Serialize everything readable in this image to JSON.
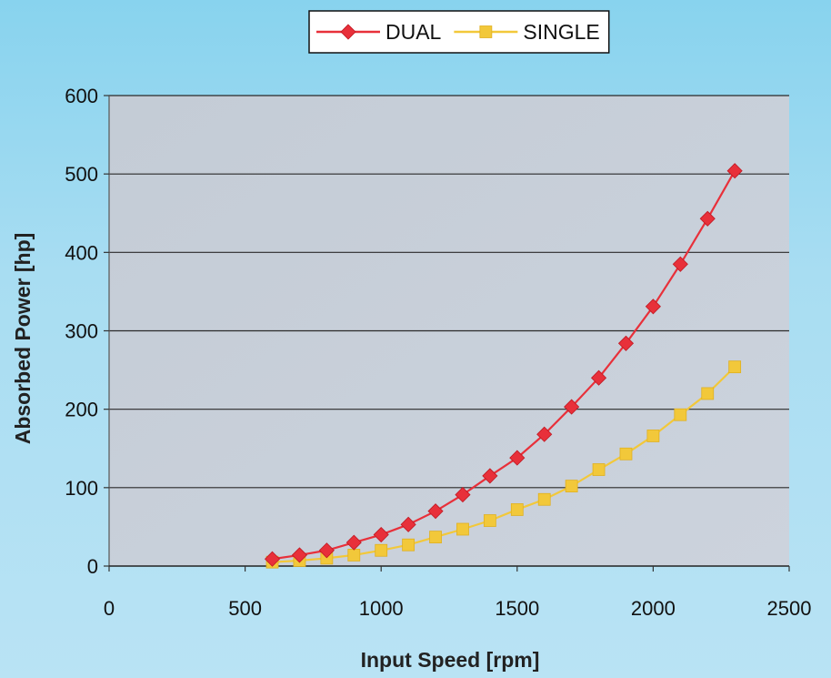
{
  "chart_data": {
    "type": "line",
    "title": "",
    "xlabel": "Input Speed [rpm]",
    "ylabel": "Absorbed Power [hp]",
    "xlim": [
      0,
      2500
    ],
    "ylim": [
      0,
      600
    ],
    "xticks": [
      "0",
      "500",
      "1000",
      "1500",
      "2000",
      "2500"
    ],
    "yticks": [
      "0",
      "100",
      "200",
      "300",
      "400",
      "500",
      "600"
    ],
    "grid": "horizontal",
    "legend_position": "top-center",
    "x": [
      600,
      700,
      800,
      900,
      1000,
      1100,
      1200,
      1300,
      1400,
      1500,
      1600,
      1700,
      1800,
      1900,
      2000,
      2100,
      2200,
      2300
    ],
    "series": [
      {
        "name": "DUAL",
        "color": "#e8303a",
        "marker": "diamond",
        "values": [
          9,
          14,
          20,
          30,
          40,
          53,
          70,
          91,
          115,
          138,
          168,
          203,
          240,
          284,
          331,
          385,
          443,
          504
        ]
      },
      {
        "name": "SINGLE",
        "color": "#f2c83a",
        "marker": "square",
        "values": [
          5,
          7,
          10,
          14,
          20,
          27,
          37,
          47,
          58,
          72,
          85,
          102,
          123,
          143,
          166,
          193,
          220,
          254
        ]
      }
    ]
  }
}
